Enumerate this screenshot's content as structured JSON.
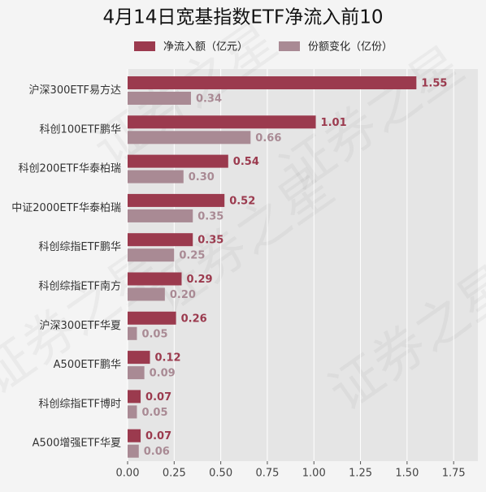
{
  "chart_data": {
    "type": "barh",
    "title": "4月14日宽基指数ETF净流入前10",
    "watermark": "证券之星",
    "categories": [
      "沪深300ETF易方达",
      "科创100ETF鹏华",
      "科创200ETF华泰柏瑞",
      "中证2000ETF华泰柏瑞",
      "科创综指ETF鹏华",
      "科创综指ETF南方",
      "沪深300ETF华夏",
      "A500ETF鹏华",
      "科创综指ETF博时",
      "A500增强ETF华夏"
    ],
    "series": [
      {
        "name": "净流入额（亿元）",
        "color": "#9b3a4e",
        "values": [
          1.55,
          1.01,
          0.54,
          0.52,
          0.35,
          0.29,
          0.26,
          0.12,
          0.07,
          0.07
        ],
        "value_labels": [
          "1.55",
          "1.01",
          "0.54",
          "0.52",
          "0.35",
          "0.29",
          "0.26",
          "0.12",
          "0.07",
          "0.07"
        ]
      },
      {
        "name": "份额变化（亿份）",
        "color": "#a98a94",
        "values": [
          0.34,
          0.66,
          0.3,
          0.35,
          0.25,
          0.2,
          0.05,
          0.09,
          0.05,
          0.06
        ],
        "value_labels": [
          "0.34",
          "0.66",
          "0.30",
          "0.35",
          "0.25",
          "0.20",
          "0.05",
          "0.09",
          "0.05",
          "0.06"
        ]
      }
    ],
    "xlim": [
      0,
      1.88
    ],
    "xticks": [
      {
        "value": 0,
        "label": "0.00"
      },
      {
        "value": 0.25,
        "label": "0.25"
      },
      {
        "value": 0.5,
        "label": "0.50"
      },
      {
        "value": 0.75,
        "label": "0.75"
      },
      {
        "value": 1,
        "label": "1.00"
      },
      {
        "value": 1.25,
        "label": "1.25"
      },
      {
        "value": 1.5,
        "label": "1.50"
      },
      {
        "value": 1.75,
        "label": "1.75"
      }
    ],
    "grid": true
  }
}
